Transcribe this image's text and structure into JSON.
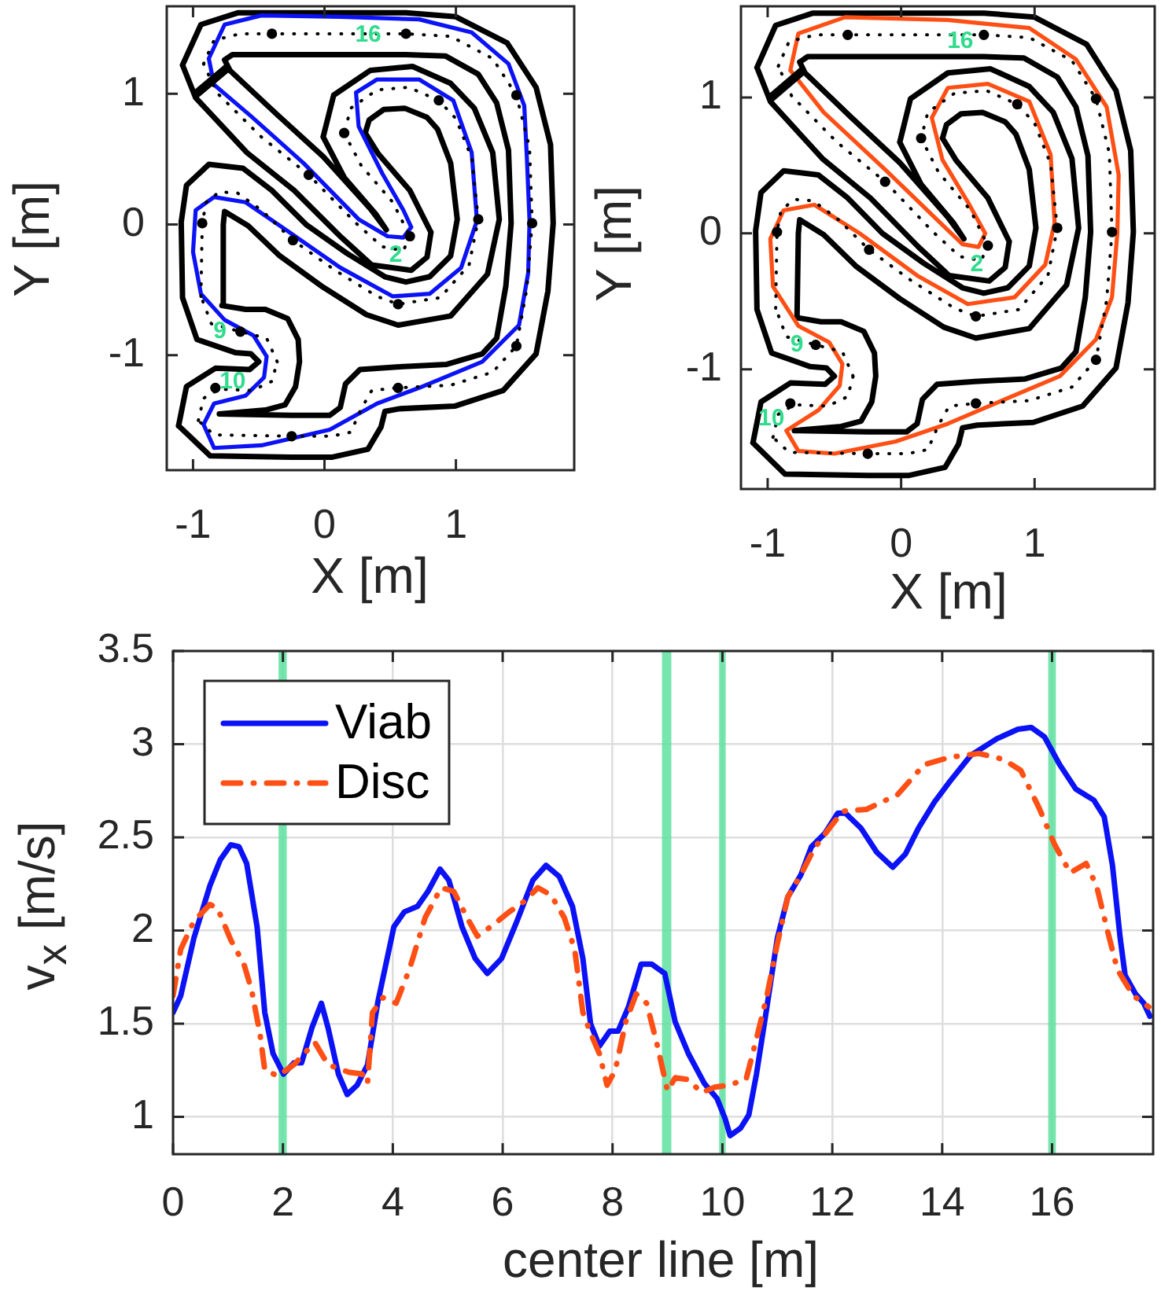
{
  "chart_data": [
    {
      "type": "line",
      "xlabel": "X [m]",
      "ylabel": "Y [m]",
      "xlim": [
        -1.2,
        1.9
      ],
      "ylim": [
        -1.88,
        1.67
      ],
      "xticks": [
        -1,
        0,
        1
      ],
      "yticks": [
        -1,
        0,
        1
      ],
      "series": [
        {
          "color": "#000000",
          "x": [
            0.81,
            0.78,
            0.66,
            0.36,
            0.13,
            -0.23,
            -0.59,
            -0.98,
            -1.08,
            null,
            -1.08,
            -0.94,
            -0.66,
            -0.4,
            0.1,
            0.62,
            1.0,
            1.39,
            1.61,
            1.72,
            1.74,
            null,
            1.74,
            1.7,
            1.61,
            1.36,
            0.99,
            0.57,
            0.46,
            0.43,
            0.33,
            0.06,
            -0.25,
            -0.87,
            -1.11,
            null,
            -1.11,
            -1.05,
            -0.83,
            -0.57,
            -0.5,
            null,
            -0.5,
            -0.56,
            -0.68,
            -0.97,
            -1.08,
            -1.09,
            null,
            -1.09,
            -1.05,
            -0.88,
            -0.62,
            -0.4,
            -0.14,
            0.17,
            0.46,
            0.62,
            0.8,
            0.96,
            1.01,
            null,
            1.01,
            0.96,
            0.86,
            0.78,
            0.61,
            0.45,
            0.34,
            0.31,
            null,
            0.31,
            0.41,
            0.65,
            0.81
          ],
          "values": [
            -0.06,
            -0.25,
            -0.35,
            -0.31,
            -0.1,
            0.26,
            0.55,
            0.97,
            1.22,
            null,
            1.22,
            1.53,
            1.62,
            1.62,
            1.62,
            1.62,
            1.59,
            1.39,
            1.05,
            0.61,
            0.01,
            null,
            0.01,
            -0.51,
            -0.99,
            -1.27,
            -1.39,
            -1.41,
            -1.43,
            -1.55,
            -1.72,
            -1.78,
            -1.78,
            -1.77,
            -1.54,
            null,
            -1.54,
            -1.24,
            -1.1,
            -1.11,
            -1.05,
            null,
            -1.05,
            -0.99,
            -0.98,
            -0.88,
            -0.56,
            0.02,
            null,
            0.02,
            0.3,
            0.46,
            0.43,
            0.26,
            0.0,
            -0.22,
            -0.4,
            -0.44,
            -0.4,
            -0.24,
            0.04,
            null,
            0.04,
            0.47,
            0.73,
            0.82,
            0.89,
            0.88,
            0.8,
            0.7,
            null,
            0.7,
            0.54,
            0.26,
            -0.06
          ]
        },
        {
          "color": "#000000",
          "x": [
            0.47,
            0.35,
            -0.01,
            -0.37,
            -0.72,
            -0.76,
            null,
            -0.76,
            -0.7,
            -0.4,
            0.1,
            0.62,
            0.92,
            1.17,
            1.31,
            1.4,
            1.42,
            null,
            1.42,
            1.38,
            1.31,
            1.2,
            0.93,
            0.55,
            0.27,
            0.16,
            0.12,
            0.04,
            -0.25,
            -0.8,
            null,
            -0.8,
            -0.45,
            -0.3,
            -0.22,
            -0.19,
            null,
            -0.19,
            -0.2,
            -0.28,
            -0.45,
            -0.6,
            -0.78,
            null,
            -0.78,
            -0.77,
            -0.76,
            -0.58,
            -0.34,
            -0.01,
            0.32,
            0.56,
            0.96,
            1.24,
            1.33,
            null,
            1.33,
            1.28,
            1.14,
            0.96,
            0.67,
            0.35,
            0.07,
            -0.01,
            null,
            -0.01,
            0.15,
            0.39,
            0.47
          ],
          "values": [
            -0.04,
            0.12,
            0.52,
            0.85,
            1.18,
            1.26,
            null,
            1.26,
            1.3,
            1.3,
            1.3,
            1.3,
            1.29,
            1.15,
            0.93,
            0.57,
            0.01,
            null,
            0.01,
            -0.47,
            -0.87,
            -0.99,
            -1.07,
            -1.09,
            -1.11,
            -1.22,
            -1.4,
            -1.46,
            -1.46,
            -1.45,
            null,
            -1.45,
            -1.42,
            -1.38,
            -1.24,
            -1.05,
            null,
            -1.05,
            -0.88,
            -0.72,
            -0.65,
            -0.65,
            -0.62,
            null,
            -0.62,
            0.0,
            0.1,
            -0.01,
            -0.24,
            -0.48,
            -0.69,
            -0.77,
            -0.7,
            -0.38,
            0.04,
            null,
            0.04,
            0.55,
            0.89,
            1.08,
            1.21,
            1.18,
            0.99,
            0.67,
            null,
            0.67,
            0.36,
            0.08,
            -0.04
          ]
        },
        {
          "color": "#0b12f5",
          "x": [
            0.66,
            0.6,
            0.48,
            0.26,
            -0.16,
            -0.56,
            -0.84,
            -0.88,
            null,
            -0.88,
            -0.76,
            -0.48,
            0.12,
            0.72,
            1.12,
            1.4,
            1.52,
            1.54,
            1.56,
            null,
            1.56,
            1.55,
            1.48,
            1.2,
            0.72,
            0.4,
            0.04,
            -0.48,
            -0.84,
            -0.92,
            null,
            -0.92,
            -0.84,
            -0.6,
            -0.46,
            -0.44,
            null,
            -0.44,
            -0.54,
            -0.76,
            -0.94,
            -1.0,
            null,
            -1.0,
            -0.98,
            -0.84,
            -0.6,
            -0.28,
            0.12,
            0.52,
            0.8,
            1.04,
            1.16,
            null,
            1.16,
            1.12,
            0.98,
            0.72,
            0.4,
            0.24,
            null,
            0.24,
            0.26,
            0.44,
            0.6,
            0.66
          ],
          "values": [
            -0.02,
            -0.1,
            -0.09,
            0.04,
            0.47,
            0.83,
            1.07,
            1.27,
            null,
            1.27,
            1.53,
            1.6,
            1.59,
            1.57,
            1.47,
            1.23,
            0.91,
            0.51,
            0.03,
            null,
            0.03,
            -0.37,
            -0.77,
            -1.05,
            -1.25,
            -1.37,
            -1.57,
            -1.69,
            -1.71,
            -1.53,
            null,
            -1.53,
            -1.37,
            -1.31,
            -1.17,
            -1.01,
            null,
            -1.01,
            -0.85,
            -0.73,
            -0.53,
            -0.21,
            null,
            -0.21,
            0.11,
            0.21,
            0.17,
            -0.05,
            -0.33,
            -0.55,
            -0.53,
            -0.33,
            0.03,
            null,
            0.03,
            0.55,
            0.95,
            1.11,
            1.11,
            1.01,
            null,
            1.01,
            0.75,
            0.39,
            0.11,
            -0.02
          ]
        },
        {
          "color": "#000000",
          "line_style": "dotted",
          "x": [
            0.65,
            0.6,
            0.44,
            0.24,
            -0.12,
            -0.48,
            -0.82,
            -0.92,
            null,
            -0.92,
            -0.84,
            -0.64,
            -0.4,
            0.1,
            0.62,
            0.96,
            1.28,
            1.46,
            1.56,
            1.58,
            null,
            1.58,
            1.54,
            1.46,
            1.28,
            0.96,
            0.56,
            0.36,
            0.28,
            0.2,
            0.05,
            -0.25,
            -0.84,
            -0.96,
            null,
            -0.96,
            -0.92,
            -0.8,
            -0.55,
            -0.4,
            -0.36,
            null,
            -0.36,
            -0.44,
            -0.64,
            -0.86,
            -0.94,
            null,
            -0.94,
            -0.93,
            -0.9,
            -0.8,
            -0.66,
            -0.48,
            -0.24,
            0.08,
            0.4,
            0.56,
            0.88,
            1.1,
            1.17,
            null,
            1.17,
            1.12,
            1.0,
            0.87,
            0.64,
            0.4,
            0.2,
            0.15,
            null,
            0.15,
            0.28,
            0.52,
            0.65
          ],
          "values": [
            -0.09,
            -0.2,
            -0.17,
            0.01,
            0.38,
            0.67,
            1.01,
            1.23,
            null,
            1.23,
            1.41,
            1.46,
            1.46,
            1.46,
            1.46,
            1.44,
            1.27,
            0.99,
            0.59,
            0.01,
            null,
            0.01,
            -0.49,
            -0.93,
            -1.13,
            -1.23,
            -1.25,
            -1.27,
            -1.41,
            -1.59,
            -1.62,
            -1.62,
            -1.61,
            -1.5,
            null,
            -1.5,
            -1.33,
            -1.26,
            -1.27,
            -1.2,
            -1.05,
            null,
            -1.05,
            -0.87,
            -0.82,
            -0.76,
            -0.55,
            null,
            -0.55,
            0.01,
            0.17,
            0.25,
            0.24,
            0.11,
            -0.12,
            -0.35,
            -0.55,
            -0.61,
            -0.56,
            -0.31,
            0.04,
            null,
            0.04,
            0.51,
            0.81,
            0.95,
            1.05,
            1.03,
            0.89,
            0.7,
            null,
            0.7,
            0.45,
            0.17,
            -0.09
          ]
        },
        {
          "type": "scatter",
          "marker": "circle",
          "color": "#000000",
          "x": [
            -0.4,
            0.62,
            1.46,
            1.58,
            1.46,
            0.56,
            -0.25,
            -0.83,
            -0.64,
            -0.93,
            -0.12,
            -0.24,
            0.56,
            1.17,
            0.87,
            0.15,
            0.65
          ],
          "values": [
            1.46,
            1.46,
            0.99,
            0.01,
            -0.93,
            -1.25,
            -1.62,
            -1.25,
            -0.82,
            0.01,
            0.38,
            -0.12,
            -0.61,
            0.04,
            0.95,
            0.7,
            -0.09
          ]
        }
      ],
      "annotations": [
        {
          "text": "16",
          "x": 0.62,
          "y": 1.46
        },
        {
          "text": "2",
          "x": 0.65,
          "y": -0.09
        },
        {
          "text": "9",
          "x": -0.64,
          "y": -0.82
        },
        {
          "text": "10",
          "x": -0.83,
          "y": -1.25
        }
      ]
    },
    {
      "type": "line",
      "xlabel": "X [m]",
      "ylabel": "Y [m]",
      "xlim": [
        -1.2,
        1.9
      ],
      "ylim": [
        -1.88,
        1.67
      ],
      "xticks": [
        -1,
        0,
        1
      ],
      "yticks": [
        -1,
        0,
        1
      ],
      "series": [
        {
          "color": "#000000",
          "x": [
            0.81,
            0.78,
            0.66,
            0.36,
            0.13,
            -0.23,
            -0.59,
            -0.98,
            -1.08,
            null,
            -1.08,
            -0.94,
            -0.66,
            -0.4,
            0.1,
            0.62,
            1.0,
            1.39,
            1.61,
            1.72,
            1.74,
            null,
            1.74,
            1.7,
            1.61,
            1.36,
            0.99,
            0.57,
            0.46,
            0.43,
            0.33,
            0.06,
            -0.25,
            -0.87,
            -1.11,
            null,
            -1.11,
            -1.05,
            -0.83,
            -0.57,
            -0.5,
            null,
            -0.5,
            -0.56,
            -0.68,
            -0.97,
            -1.08,
            -1.09,
            null,
            -1.09,
            -1.05,
            -0.88,
            -0.62,
            -0.4,
            -0.14,
            0.17,
            0.46,
            0.62,
            0.8,
            0.96,
            1.01,
            null,
            1.01,
            0.96,
            0.86,
            0.78,
            0.61,
            0.45,
            0.34,
            0.31,
            null,
            0.31,
            0.41,
            0.65,
            0.81
          ],
          "values": [
            -0.06,
            -0.25,
            -0.35,
            -0.31,
            -0.1,
            0.26,
            0.55,
            0.97,
            1.22,
            null,
            1.22,
            1.53,
            1.62,
            1.62,
            1.62,
            1.62,
            1.59,
            1.39,
            1.05,
            0.61,
            0.01,
            null,
            0.01,
            -0.51,
            -0.99,
            -1.27,
            -1.39,
            -1.41,
            -1.43,
            -1.55,
            -1.72,
            -1.78,
            -1.78,
            -1.77,
            -1.54,
            null,
            -1.54,
            -1.24,
            -1.1,
            -1.11,
            -1.05,
            null,
            -1.05,
            -0.99,
            -0.98,
            -0.88,
            -0.56,
            0.02,
            null,
            0.02,
            0.3,
            0.46,
            0.43,
            0.26,
            0.0,
            -0.22,
            -0.4,
            -0.44,
            -0.4,
            -0.24,
            0.04,
            null,
            0.04,
            0.47,
            0.73,
            0.82,
            0.89,
            0.88,
            0.8,
            0.7,
            null,
            0.7,
            0.54,
            0.26,
            -0.06
          ]
        },
        {
          "color": "#000000",
          "x": [
            0.47,
            0.35,
            -0.01,
            -0.37,
            -0.72,
            -0.76,
            null,
            -0.76,
            -0.7,
            -0.4,
            0.1,
            0.62,
            0.92,
            1.17,
            1.31,
            1.4,
            1.42,
            null,
            1.42,
            1.38,
            1.31,
            1.2,
            0.93,
            0.55,
            0.27,
            0.16,
            0.12,
            0.04,
            -0.25,
            -0.8,
            null,
            -0.8,
            -0.45,
            -0.3,
            -0.22,
            -0.19,
            null,
            -0.19,
            -0.2,
            -0.28,
            -0.45,
            -0.6,
            -0.78,
            null,
            -0.78,
            -0.77,
            -0.76,
            -0.58,
            -0.34,
            -0.01,
            0.32,
            0.56,
            0.96,
            1.24,
            1.33,
            null,
            1.33,
            1.28,
            1.14,
            0.96,
            0.67,
            0.35,
            0.07,
            -0.01,
            null,
            -0.01,
            0.15,
            0.39,
            0.47
          ],
          "values": [
            -0.04,
            0.12,
            0.52,
            0.85,
            1.18,
            1.26,
            null,
            1.26,
            1.3,
            1.3,
            1.3,
            1.3,
            1.29,
            1.15,
            0.93,
            0.57,
            0.01,
            null,
            0.01,
            -0.47,
            -0.87,
            -0.99,
            -1.07,
            -1.09,
            -1.11,
            -1.22,
            -1.4,
            -1.46,
            -1.46,
            -1.45,
            null,
            -1.45,
            -1.42,
            -1.38,
            -1.24,
            -1.05,
            null,
            -1.05,
            -0.88,
            -0.72,
            -0.65,
            -0.65,
            -0.62,
            null,
            -0.62,
            0.0,
            0.1,
            -0.01,
            -0.24,
            -0.48,
            -0.69,
            -0.77,
            -0.7,
            -0.38,
            0.04,
            null,
            0.04,
            0.55,
            0.89,
            1.08,
            1.21,
            1.18,
            0.99,
            0.67,
            null,
            0.67,
            0.36,
            0.08,
            -0.04
          ]
        },
        {
          "color": "#ff4f14",
          "x": [
            0.63,
            0.58,
            0.46,
            0.27,
            -0.12,
            -0.58,
            -0.83,
            null,
            -0.83,
            -0.77,
            -0.42,
            0.35,
            0.96,
            1.31,
            1.54,
            1.63,
            null,
            1.63,
            1.62,
            1.58,
            1.46,
            1.19,
            0.73,
            0.35,
            -0.04,
            -0.5,
            -0.77,
            -0.86,
            null,
            -0.86,
            -0.62,
            -0.46,
            -0.44,
            null,
            -0.44,
            -0.54,
            -0.77,
            -0.96,
            -0.98,
            null,
            -0.98,
            -0.88,
            -0.65,
            -0.31,
            0.12,
            0.5,
            0.85,
            1.08,
            1.15,
            null,
            1.15,
            1.12,
            0.96,
            0.65,
            0.35,
            0.23,
            null,
            0.23,
            0.31,
            0.5,
            0.63
          ],
          "values": [
            0.0,
            -0.1,
            -0.08,
            0.1,
            0.47,
            0.89,
            1.2,
            null,
            1.2,
            1.47,
            1.59,
            1.57,
            1.51,
            1.28,
            0.93,
            0.43,
            null,
            0.43,
            0.0,
            -0.47,
            -0.78,
            -1.05,
            -1.24,
            -1.4,
            -1.53,
            -1.62,
            -1.6,
            -1.45,
            null,
            -1.45,
            -1.3,
            -1.12,
            -0.96,
            null,
            -0.96,
            -0.8,
            -0.68,
            -0.39,
            -0.04,
            null,
            -0.04,
            0.17,
            0.21,
            0.0,
            -0.31,
            -0.52,
            -0.47,
            -0.23,
            0.08,
            null,
            0.08,
            0.58,
            0.97,
            1.1,
            1.07,
            0.85,
            null,
            0.85,
            0.54,
            0.23,
            0.0
          ]
        },
        {
          "color": "#000000",
          "line_style": "dotted",
          "x": [
            0.65,
            0.6,
            0.44,
            0.24,
            -0.12,
            -0.48,
            -0.82,
            -0.92,
            null,
            -0.92,
            -0.84,
            -0.64,
            -0.4,
            0.1,
            0.62,
            0.96,
            1.28,
            1.46,
            1.56,
            1.58,
            null,
            1.58,
            1.54,
            1.46,
            1.28,
            0.96,
            0.56,
            0.36,
            0.28,
            0.2,
            0.05,
            -0.25,
            -0.84,
            -0.96,
            null,
            -0.96,
            -0.92,
            -0.8,
            -0.55,
            -0.4,
            -0.36,
            null,
            -0.36,
            -0.44,
            -0.64,
            -0.86,
            -0.94,
            null,
            -0.94,
            -0.93,
            -0.9,
            -0.8,
            -0.66,
            -0.48,
            -0.24,
            0.08,
            0.4,
            0.56,
            0.88,
            1.1,
            1.17,
            null,
            1.17,
            1.12,
            1.0,
            0.87,
            0.64,
            0.4,
            0.2,
            0.15,
            null,
            0.15,
            0.28,
            0.52,
            0.65
          ],
          "values": [
            -0.09,
            -0.2,
            -0.17,
            0.01,
            0.38,
            0.67,
            1.01,
            1.23,
            null,
            1.23,
            1.41,
            1.46,
            1.46,
            1.46,
            1.46,
            1.44,
            1.27,
            0.99,
            0.59,
            0.01,
            null,
            0.01,
            -0.49,
            -0.93,
            -1.13,
            -1.23,
            -1.25,
            -1.27,
            -1.41,
            -1.59,
            -1.62,
            -1.62,
            -1.61,
            -1.5,
            null,
            -1.5,
            -1.33,
            -1.26,
            -1.27,
            -1.2,
            -1.05,
            null,
            -1.05,
            -0.87,
            -0.82,
            -0.76,
            -0.55,
            null,
            -0.55,
            0.01,
            0.17,
            0.25,
            0.24,
            0.11,
            -0.12,
            -0.35,
            -0.55,
            -0.61,
            -0.56,
            -0.31,
            0.04,
            null,
            0.04,
            0.51,
            0.81,
            0.95,
            1.05,
            1.03,
            0.89,
            0.7,
            null,
            0.7,
            0.45,
            0.17,
            -0.09
          ]
        },
        {
          "type": "scatter",
          "marker": "circle",
          "color": "#000000",
          "x": [
            -0.4,
            0.62,
            1.46,
            1.58,
            1.46,
            0.56,
            -0.25,
            -0.83,
            -0.64,
            -0.93,
            -0.12,
            -0.24,
            0.56,
            1.17,
            0.87,
            0.15,
            0.65
          ],
          "values": [
            1.46,
            1.46,
            0.99,
            0.01,
            -0.93,
            -1.25,
            -1.62,
            -1.25,
            -0.82,
            0.01,
            0.38,
            -0.12,
            -0.61,
            0.04,
            0.95,
            0.7,
            -0.09
          ]
        }
      ],
      "annotations": [
        {
          "text": "16",
          "x": 0.62,
          "y": 1.46
        },
        {
          "text": "2",
          "x": 0.65,
          "y": -0.09
        },
        {
          "text": "9",
          "x": -0.64,
          "y": -0.82
        },
        {
          "text": "10",
          "x": -0.83,
          "y": -1.25
        }
      ]
    },
    {
      "type": "line",
      "xlabel": "center line [m]",
      "ylabel": "v$_{x}$ [m/s]",
      "xlim": [
        0,
        17.84
      ],
      "ylim": [
        0.8,
        3.5
      ],
      "xticks": [
        0,
        2,
        4,
        6,
        8,
        10,
        12,
        14,
        16
      ],
      "yticks": [
        1,
        1.5,
        2,
        2.5,
        3,
        3.5
      ],
      "grid": true,
      "legend": "top left",
      "bands": [
        {
          "axis": "x",
          "from": 1.92,
          "to": 2.07,
          "color": "#5ee0a0"
        },
        {
          "axis": "x",
          "from": 8.9,
          "to": 9.07,
          "color": "#5ee0a0"
        },
        {
          "axis": "x",
          "from": 9.94,
          "to": 10.06,
          "color": "#5ee0a0"
        },
        {
          "axis": "x",
          "from": 15.93,
          "to": 16.07,
          "color": "#5ee0a0"
        }
      ],
      "series": [
        {
          "name": "Viab",
          "color": "#0b12f5",
          "x": [
            0,
            0.14,
            0.38,
            0.67,
            0.86,
            1.05,
            1.2,
            1.34,
            1.53,
            1.67,
            1.82,
            2.01,
            2.2,
            2.34,
            2.53,
            2.7,
            2.82,
            3.01,
            3.17,
            3.35,
            3.54,
            3.73,
            4.02,
            4.21,
            4.45,
            4.64,
            4.86,
            5.02,
            5.26,
            5.5,
            5.72,
            5.98,
            6.26,
            6.55,
            6.79,
            7.03,
            7.27,
            7.46,
            7.6,
            7.76,
            7.95,
            8.1,
            8.29,
            8.52,
            8.71,
            8.95,
            9.14,
            9.38,
            9.67,
            9.9,
            10.05,
            10.14,
            10.33,
            10.48,
            10.62,
            10.81,
            11.0,
            11.19,
            11.43,
            11.62,
            11.86,
            12.1,
            12.24,
            12.52,
            12.81,
            13.1,
            13.33,
            13.57,
            13.86,
            14.14,
            14.52,
            15.0,
            15.38,
            15.62,
            15.86,
            16.14,
            16.43,
            16.76,
            16.95,
            17.1,
            17.24,
            17.33,
            17.52,
            17.67,
            17.78
          ],
          "values": [
            1.56,
            1.65,
            1.96,
            2.24,
            2.38,
            2.46,
            2.45,
            2.36,
            2.02,
            1.56,
            1.34,
            1.23,
            1.29,
            1.29,
            1.48,
            1.61,
            1.48,
            1.23,
            1.12,
            1.17,
            1.28,
            1.62,
            2.02,
            2.1,
            2.13,
            2.21,
            2.33,
            2.27,
            2.02,
            1.85,
            1.77,
            1.85,
            2.05,
            2.27,
            2.35,
            2.29,
            2.13,
            1.85,
            1.5,
            1.38,
            1.46,
            1.46,
            1.59,
            1.82,
            1.82,
            1.77,
            1.51,
            1.34,
            1.18,
            1.1,
            0.99,
            0.9,
            0.94,
            1.01,
            1.23,
            1.59,
            1.96,
            2.18,
            2.3,
            2.45,
            2.52,
            2.63,
            2.63,
            2.55,
            2.42,
            2.34,
            2.41,
            2.55,
            2.69,
            2.8,
            2.94,
            3.03,
            3.08,
            3.09,
            3.04,
            2.89,
            2.76,
            2.7,
            2.61,
            2.35,
            1.96,
            1.76,
            1.66,
            1.61,
            1.54
          ]
        },
        {
          "name": "Disc",
          "color": "#ff4f14",
          "line_style": "dashed",
          "x": [
            0,
            0.14,
            0.38,
            0.67,
            0.81,
            1.05,
            1.29,
            1.43,
            1.58,
            1.67,
            1.91,
            2.2,
            2.58,
            2.82,
            3.2,
            3.44,
            3.54,
            3.63,
            3.82,
            4.06,
            4.3,
            4.59,
            4.88,
            5.11,
            5.35,
            5.54,
            5.78,
            6.12,
            6.41,
            6.64,
            6.88,
            7.12,
            7.31,
            7.46,
            7.6,
            7.76,
            7.9,
            8.05,
            8.24,
            8.43,
            8.62,
            8.81,
            9.0,
            9.14,
            9.38,
            9.62,
            9.86,
            10.1,
            10.43,
            10.62,
            10.81,
            11.0,
            11.19,
            11.43,
            11.67,
            11.95,
            12.19,
            12.62,
            13.19,
            13.67,
            14.14,
            14.67,
            15.1,
            15.43,
            15.76,
            16.05,
            16.33,
            16.62,
            16.81,
            17.0,
            17.19,
            17.48,
            17.76
          ],
          "values": [
            1.65,
            1.9,
            2.05,
            2.14,
            2.12,
            1.95,
            1.82,
            1.68,
            1.45,
            1.25,
            1.22,
            1.28,
            1.4,
            1.28,
            1.24,
            1.23,
            1.18,
            1.56,
            1.64,
            1.61,
            1.79,
            2.07,
            2.23,
            2.21,
            2.07,
            1.97,
            2.02,
            2.1,
            2.16,
            2.23,
            2.19,
            2.07,
            1.9,
            1.56,
            1.45,
            1.34,
            1.17,
            1.25,
            1.51,
            1.66,
            1.61,
            1.39,
            1.14,
            1.21,
            1.2,
            1.13,
            1.16,
            1.17,
            1.2,
            1.42,
            1.65,
            1.93,
            2.18,
            2.3,
            2.44,
            2.55,
            2.64,
            2.65,
            2.73,
            2.89,
            2.93,
            2.95,
            2.92,
            2.86,
            2.66,
            2.46,
            2.31,
            2.36,
            2.24,
            2.01,
            1.79,
            1.65,
            1.59
          ]
        }
      ]
    }
  ]
}
